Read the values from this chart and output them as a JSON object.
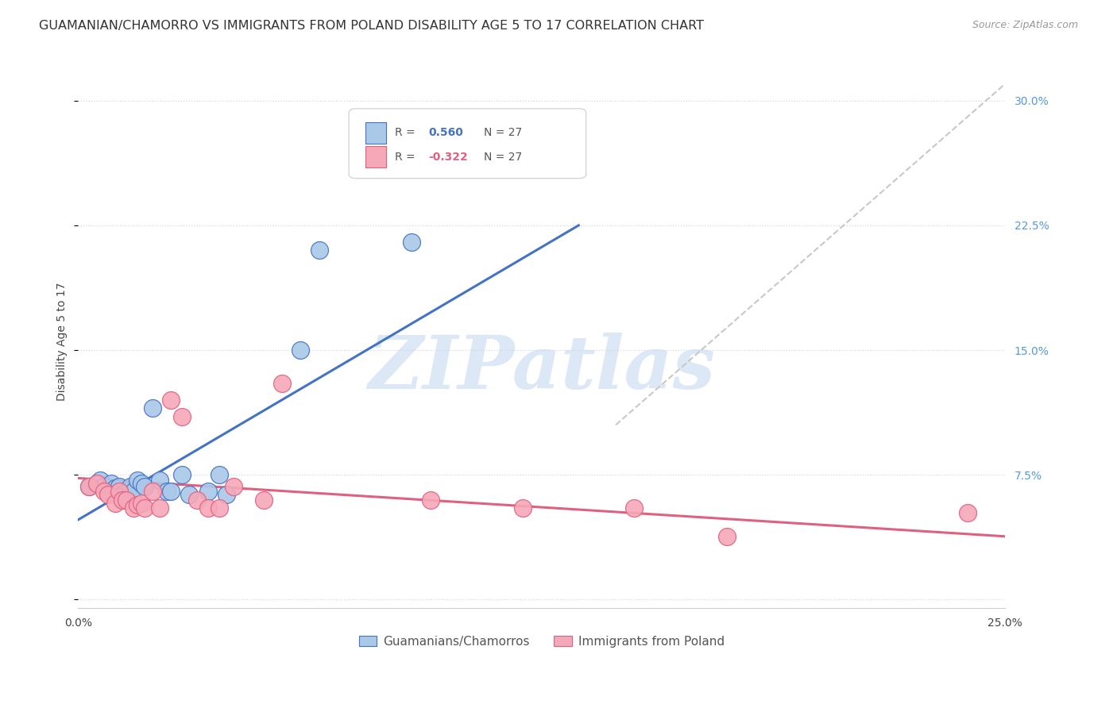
{
  "title": "GUAMANIAN/CHAMORRO VS IMMIGRANTS FROM POLAND DISABILITY AGE 5 TO 17 CORRELATION CHART",
  "source": "Source: ZipAtlas.com",
  "ylabel": "Disability Age 5 to 17",
  "legend_label1": "Guamanians/Chamorros",
  "legend_label2": "Immigrants from Poland",
  "xlim": [
    0.0,
    0.25
  ],
  "ylim": [
    -0.005,
    0.315
  ],
  "blue_scatter_x": [
    0.003,
    0.005,
    0.006,
    0.007,
    0.008,
    0.009,
    0.01,
    0.011,
    0.012,
    0.013,
    0.014,
    0.015,
    0.016,
    0.017,
    0.018,
    0.02,
    0.022,
    0.024,
    0.025,
    0.028,
    0.03,
    0.035,
    0.038,
    0.04,
    0.06,
    0.065,
    0.09
  ],
  "blue_scatter_y": [
    0.068,
    0.07,
    0.072,
    0.068,
    0.065,
    0.07,
    0.067,
    0.068,
    0.063,
    0.065,
    0.068,
    0.065,
    0.072,
    0.07,
    0.068,
    0.115,
    0.072,
    0.065,
    0.065,
    0.075,
    0.063,
    0.065,
    0.075,
    0.063,
    0.15,
    0.21,
    0.215
  ],
  "pink_scatter_x": [
    0.003,
    0.005,
    0.007,
    0.008,
    0.01,
    0.011,
    0.012,
    0.013,
    0.015,
    0.016,
    0.017,
    0.018,
    0.02,
    0.022,
    0.025,
    0.028,
    0.032,
    0.035,
    0.038,
    0.042,
    0.05,
    0.055,
    0.095,
    0.12,
    0.15,
    0.175,
    0.24
  ],
  "pink_scatter_y": [
    0.068,
    0.07,
    0.065,
    0.063,
    0.058,
    0.065,
    0.06,
    0.06,
    0.055,
    0.057,
    0.058,
    0.055,
    0.065,
    0.055,
    0.12,
    0.11,
    0.06,
    0.055,
    0.055,
    0.068,
    0.06,
    0.13,
    0.06,
    0.055,
    0.055,
    0.038,
    0.052
  ],
  "blue_line_x0": 0.0,
  "blue_line_x1": 0.135,
  "blue_line_y0": 0.048,
  "blue_line_y1": 0.225,
  "pink_line_x0": 0.0,
  "pink_line_x1": 0.25,
  "pink_line_y0": 0.073,
  "pink_line_y1": 0.038,
  "gray_line_x0": 0.145,
  "gray_line_x1": 0.25,
  "gray_line_y0": 0.105,
  "gray_line_y1": 0.31,
  "scatter_color_blue": "#aac8e8",
  "scatter_color_pink": "#f5a8b8",
  "line_color_blue": "#4472c4",
  "line_color_pink": "#e06080",
  "line_color_gray": "#c8c8c8",
  "background_color": "#ffffff",
  "title_fontsize": 11.5,
  "axis_label_fontsize": 10,
  "tick_fontsize": 10,
  "right_tick_color": "#5599dd",
  "watermark_text": "ZIPatlas",
  "watermark_color": "#dce8f5"
}
